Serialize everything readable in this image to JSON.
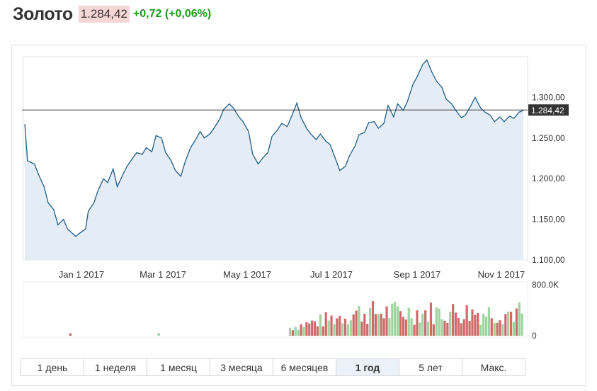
{
  "header": {
    "title": "Золото",
    "price": "1.284,42",
    "change": "+0,72 (+0,06%)"
  },
  "colors": {
    "line": "#1f5d85",
    "area": "#e4edf6",
    "up_volume": "#9fd39f",
    "down_volume": "#cf6a6a",
    "price_change": "#1e9a1e",
    "price_bg": "#f7d6d6",
    "last_price_label_bg": "#333333"
  },
  "tabs": [
    {
      "label": "1 день",
      "active": false
    },
    {
      "label": "1 неделя",
      "active": false
    },
    {
      "label": "1 месяц",
      "active": false
    },
    {
      "label": "3 месяца",
      "active": false
    },
    {
      "label": "6 месяцев",
      "active": false
    },
    {
      "label": "1 год",
      "active": true
    },
    {
      "label": "5 лет",
      "active": false
    },
    {
      "label": "Макс.",
      "active": false
    }
  ],
  "chart_data": {
    "type": "area",
    "grid": false,
    "last_price_line": 1284.42,
    "last_price_label": "1.284,42",
    "y_ticks": [
      {
        "value": 1300,
        "label": "1.300,00"
      },
      {
        "value": 1250,
        "label": "1.250,00"
      },
      {
        "value": 1200,
        "label": "1.200,00"
      },
      {
        "value": 1150,
        "label": "1.150,00"
      },
      {
        "value": 1100,
        "label": "1.100,00"
      }
    ],
    "ylim": [
      1100,
      1350
    ],
    "x_ticks": [
      {
        "date": "2017-01-01",
        "label": "Jan 1 2017"
      },
      {
        "date": "2017-03-01",
        "label": "Mar 1 2017"
      },
      {
        "date": "2017-05-01",
        "label": "May 1 2017"
      },
      {
        "date": "2017-07-01",
        "label": "Jul 1 2017"
      },
      {
        "date": "2017-09-01",
        "label": "Sep 1 2017"
      },
      {
        "date": "2017-11-01",
        "label": "Nov 1 2017"
      }
    ],
    "xlim": [
      "2016-11-20",
      "2017-11-20"
    ],
    "series": [
      {
        "points": [
          [
            "2016-11-21",
            1267
          ],
          [
            "2016-11-23",
            1222
          ],
          [
            "2016-11-28",
            1218
          ],
          [
            "2016-12-01",
            1205
          ],
          [
            "2016-12-05",
            1190
          ],
          [
            "2016-12-08",
            1170
          ],
          [
            "2016-12-12",
            1162
          ],
          [
            "2016-12-15",
            1143
          ],
          [
            "2016-12-19",
            1150
          ],
          [
            "2016-12-22",
            1138
          ],
          [
            "2016-12-28",
            1129
          ],
          [
            "2016-12-30",
            1132
          ],
          [
            "2017-01-04",
            1138
          ],
          [
            "2017-01-06",
            1160
          ],
          [
            "2017-01-10",
            1170
          ],
          [
            "2017-01-13",
            1185
          ],
          [
            "2017-01-17",
            1200
          ],
          [
            "2017-01-20",
            1195
          ],
          [
            "2017-01-24",
            1212
          ],
          [
            "2017-01-27",
            1190
          ],
          [
            "2017-01-31",
            1205
          ],
          [
            "2017-02-03",
            1215
          ],
          [
            "2017-02-07",
            1225
          ],
          [
            "2017-02-10",
            1232
          ],
          [
            "2017-02-14",
            1230
          ],
          [
            "2017-02-17",
            1238
          ],
          [
            "2017-02-21",
            1233
          ],
          [
            "2017-02-24",
            1253
          ],
          [
            "2017-02-28",
            1250
          ],
          [
            "2017-03-03",
            1232
          ],
          [
            "2017-03-07",
            1222
          ],
          [
            "2017-03-10",
            1210
          ],
          [
            "2017-03-14",
            1203
          ],
          [
            "2017-03-17",
            1220
          ],
          [
            "2017-03-21",
            1238
          ],
          [
            "2017-03-24",
            1246
          ],
          [
            "2017-03-28",
            1258
          ],
          [
            "2017-03-31",
            1250
          ],
          [
            "2017-04-04",
            1255
          ],
          [
            "2017-04-07",
            1262
          ],
          [
            "2017-04-11",
            1273
          ],
          [
            "2017-04-14",
            1285
          ],
          [
            "2017-04-18",
            1292
          ],
          [
            "2017-04-21",
            1287
          ],
          [
            "2017-04-25",
            1276
          ],
          [
            "2017-04-28",
            1270
          ],
          [
            "2017-05-02",
            1258
          ],
          [
            "2017-05-05",
            1230
          ],
          [
            "2017-05-09",
            1218
          ],
          [
            "2017-05-12",
            1225
          ],
          [
            "2017-05-16",
            1232
          ],
          [
            "2017-05-19",
            1252
          ],
          [
            "2017-05-23",
            1260
          ],
          [
            "2017-05-26",
            1268
          ],
          [
            "2017-05-30",
            1264
          ],
          [
            "2017-06-02",
            1276
          ],
          [
            "2017-06-06",
            1293
          ],
          [
            "2017-06-09",
            1275
          ],
          [
            "2017-06-13",
            1262
          ],
          [
            "2017-06-16",
            1255
          ],
          [
            "2017-06-20",
            1248
          ],
          [
            "2017-06-23",
            1255
          ],
          [
            "2017-06-27",
            1246
          ],
          [
            "2017-06-30",
            1242
          ],
          [
            "2017-07-04",
            1224
          ],
          [
            "2017-07-07",
            1210
          ],
          [
            "2017-07-11",
            1215
          ],
          [
            "2017-07-14",
            1228
          ],
          [
            "2017-07-18",
            1240
          ],
          [
            "2017-07-21",
            1254
          ],
          [
            "2017-07-25",
            1257
          ],
          [
            "2017-07-28",
            1269
          ],
          [
            "2017-08-01",
            1270
          ],
          [
            "2017-08-04",
            1262
          ],
          [
            "2017-08-08",
            1268
          ],
          [
            "2017-08-11",
            1290
          ],
          [
            "2017-08-15",
            1276
          ],
          [
            "2017-08-18",
            1292
          ],
          [
            "2017-08-22",
            1284
          ],
          [
            "2017-08-25",
            1295
          ],
          [
            "2017-08-29",
            1316
          ],
          [
            "2017-09-01",
            1325
          ],
          [
            "2017-09-05",
            1340
          ],
          [
            "2017-09-08",
            1346
          ],
          [
            "2017-09-12",
            1330
          ],
          [
            "2017-09-15",
            1320
          ],
          [
            "2017-09-19",
            1312
          ],
          [
            "2017-09-22",
            1298
          ],
          [
            "2017-09-26",
            1292
          ],
          [
            "2017-09-29",
            1284
          ],
          [
            "2017-10-03",
            1275
          ],
          [
            "2017-10-06",
            1278
          ],
          [
            "2017-10-10",
            1290
          ],
          [
            "2017-10-13",
            1300
          ],
          [
            "2017-10-17",
            1287
          ],
          [
            "2017-10-20",
            1282
          ],
          [
            "2017-10-24",
            1278
          ],
          [
            "2017-10-27",
            1270
          ],
          [
            "2017-10-31",
            1276
          ],
          [
            "2017-11-03",
            1270
          ],
          [
            "2017-11-07",
            1277
          ],
          [
            "2017-11-10",
            1274
          ],
          [
            "2017-11-14",
            1282
          ],
          [
            "2017-11-17",
            1284
          ]
        ]
      }
    ],
    "volume": {
      "ylabels": [
        {
          "value": 800000,
          "label": "800.0K"
        },
        {
          "value": 0,
          "label": "0"
        }
      ],
      "ylim": [
        0,
        800000
      ],
      "start": "2017-06-01",
      "end": "2017-11-17",
      "min": 170000,
      "max": 560000,
      "sparse": [
        {
          "date": "2016-12-24",
          "value": 40000,
          "dir": "down"
        },
        {
          "date": "2017-02-26",
          "value": 45000,
          "dir": "up"
        }
      ]
    }
  }
}
